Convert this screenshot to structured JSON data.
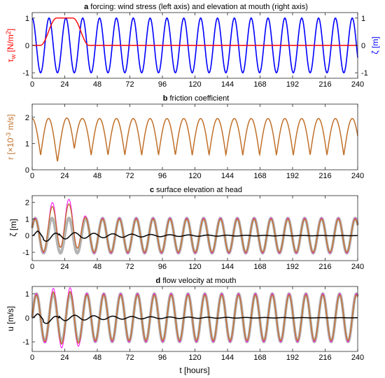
{
  "colors": {
    "wind": "#ff0000",
    "elevation": "#0000ff",
    "friction": "#c0702a",
    "gray": "#b4b4b4",
    "magenta": "#ff00ff",
    "black": "#000000",
    "axis": "#262626"
  },
  "xlabel": "t [hours]",
  "xticks": [
    0,
    24,
    48,
    72,
    96,
    120,
    144,
    168,
    192,
    216,
    240
  ],
  "chart_data": [
    {
      "type": "line",
      "title_bold": "a",
      "title": "forcing: wind stress (left axis) and elevation at mouth (right axis)",
      "xlim": [
        0,
        240
      ],
      "ylim": [
        -1.2,
        1.2
      ],
      "ylabel_left": "τ",
      "ylabel_left_sub": "w",
      "ylabel_left_unit": " [N/m",
      "ylabel_left_sup": "2",
      "ylabel_left_end": "]",
      "ylabel_right": "ζ [m]",
      "yticks_left": [
        -1,
        0,
        1
      ],
      "yticks_right": [
        -1,
        0,
        1
      ],
      "tick_color_left": "#ff0000",
      "tick_color_right": "#0000ff",
      "series": [
        {
          "key": "wind",
          "axis": "left",
          "model": "trapezoid",
          "rise_start": 6,
          "plateau_start": 18,
          "plateau_end": 30,
          "fall_end": 42,
          "amplitude": 1
        },
        {
          "key": "elevation",
          "axis": "right",
          "model": "cos",
          "period_hours": 12.42,
          "amplitude": 1
        }
      ]
    },
    {
      "type": "line",
      "title_bold": "b",
      "title": "friction coefficient",
      "xlim": [
        0,
        240
      ],
      "ylim": [
        0,
        2.5
      ],
      "ylabel_pre": "r [×10",
      "ylabel_sup": "-3",
      "ylabel_post": " m/s]",
      "yticks": [
        0,
        1,
        2
      ],
      "tick_color": "#c0702a",
      "series": [
        {
          "key": "friction",
          "model": "abs-cos",
          "period_hours": 12.42,
          "min": 0.55,
          "max": 1.95
        }
      ]
    },
    {
      "type": "line",
      "title_bold": "c",
      "title": "surface elevation at head",
      "xlim": [
        0,
        240
      ],
      "ylim": [
        -1.5,
        2.4
      ],
      "ylabel": "ζ [m]",
      "yticks": [
        -1,
        0,
        1,
        2
      ],
      "peaks_early": [
        1.6,
        2.2,
        1.3
      ],
      "series": [
        {
          "key": "gray",
          "model": "cos",
          "period_hours": 12.42,
          "amplitude": 1.05,
          "phase_hours": 2.2
        },
        {
          "key": "magenta",
          "model": "cos-surge",
          "period_hours": 12.42,
          "amplitude": 1.05,
          "phase_hours": 2.2,
          "surge": 0.75
        },
        {
          "key": "friction",
          "model": "cos-surge",
          "period_hours": 12.42,
          "amplitude": 1.0,
          "phase_hours": 2.2,
          "surge": 0.6
        },
        {
          "key": "black",
          "model": "residual",
          "amplitude": 0.3,
          "decay_hours": 60
        }
      ]
    },
    {
      "type": "line",
      "title_bold": "d",
      "title": "flow velocity at mouth",
      "xlim": [
        0,
        240
      ],
      "ylim": [
        -1.4,
        1.3
      ],
      "ylabel": "u [m/s]",
      "yticks": [
        -1,
        0,
        1
      ],
      "series": [
        {
          "key": "gray",
          "model": "sin",
          "period_hours": 12.42,
          "amplitude": 1.0,
          "phase_hours": 0
        },
        {
          "key": "magenta",
          "model": "sin-surge",
          "period_hours": 12.42,
          "amplitude": 1.0,
          "phase_hours": 0,
          "surge": 0.25
        },
        {
          "key": "friction",
          "model": "sin-surge",
          "period_hours": 12.42,
          "amplitude": 0.95,
          "phase_hours": 0,
          "surge": 0.15
        },
        {
          "key": "black",
          "model": "residual",
          "amplitude": 0.18,
          "decay_hours": 60
        }
      ]
    }
  ]
}
